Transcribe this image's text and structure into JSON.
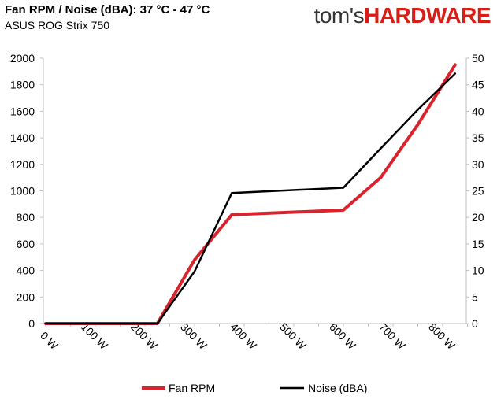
{
  "header": {
    "title": "Fan RPM / Noise (dBA): 37 °C - 47 °C",
    "subtitle": "ASUS ROG Strix 750"
  },
  "brand": {
    "prefix": "tom's",
    "suffix": "HARDWARE",
    "color_prefix": "#333333",
    "color_suffix": "#d91e18"
  },
  "chart_data": {
    "type": "line",
    "title": "Fan RPM / Noise (dBA): 37 °C - 47 °C",
    "subtitle": "ASUS ROG Strix 750",
    "categories": [
      "0 W",
      "100 W",
      "200 W",
      "300 W",
      "400 W",
      "500 W",
      "600 W",
      "700 W",
      "800 W"
    ],
    "xlim": [
      0,
      850
    ],
    "ylim_left": [
      0,
      2000
    ],
    "yticks_left": [
      0,
      200,
      400,
      600,
      800,
      1000,
      1200,
      1400,
      1600,
      1800,
      2000
    ],
    "ylim_right": [
      0,
      50
    ],
    "yticks_right": [
      0,
      5,
      10,
      15,
      20,
      25,
      30,
      35,
      40,
      45,
      50
    ],
    "grid": false,
    "legend_position": "bottom",
    "series": [
      {
        "name": "Fan RPM",
        "axis": "left",
        "color": "#d9232d",
        "x": [
          0,
          75,
          150,
          225,
          300,
          375,
          600,
          675,
          750,
          825
        ],
        "y": [
          0,
          0,
          0,
          0,
          480,
          820,
          855,
          1100,
          1500,
          1950
        ]
      },
      {
        "name": "Noise (dBA)",
        "axis": "right",
        "color": "#000000",
        "x": [
          0,
          75,
          150,
          225,
          300,
          375,
          600,
          675,
          750,
          825
        ],
        "y": [
          0,
          0,
          0,
          0,
          9.8,
          24.6,
          25.6,
          33.0,
          40.3,
          47.1
        ]
      }
    ]
  }
}
